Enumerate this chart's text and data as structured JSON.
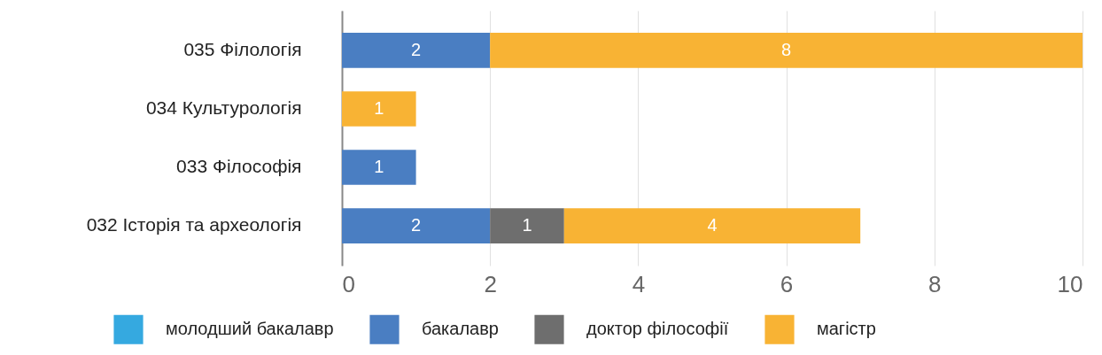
{
  "chart_data": {
    "type": "bar",
    "orientation": "horizontal",
    "stacked": true,
    "categories": [
      "035 Філологія",
      "034 Культурологія",
      "033 Філософія",
      "032 Історія та археологія"
    ],
    "series": [
      {
        "name": "молодший бакалавр",
        "color": "#35a9e0",
        "values": [
          null,
          null,
          null,
          null
        ]
      },
      {
        "name": "бакалавр",
        "color": "#4a7ec2",
        "values": [
          2,
          null,
          1,
          2
        ]
      },
      {
        "name": "доктор філософії",
        "color": "#6e6e6e",
        "values": [
          null,
          null,
          null,
          1
        ]
      },
      {
        "name": "магістр",
        "color": "#f8b334",
        "values": [
          8,
          1,
          null,
          4
        ]
      }
    ],
    "xlim": [
      0,
      10
    ],
    "xticks": [
      0,
      2,
      4,
      6,
      8,
      10
    ],
    "grid": "x",
    "legend": "bottom",
    "data_labels": true
  }
}
